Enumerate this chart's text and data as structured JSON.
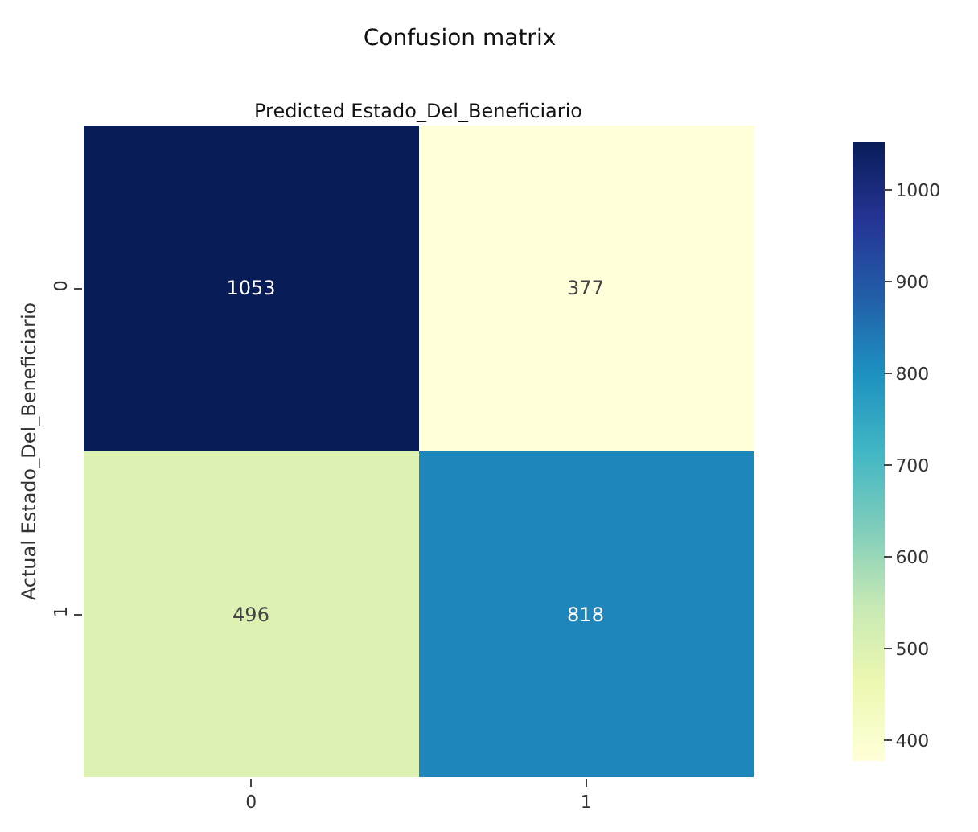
{
  "chart_data": {
    "type": "heatmap",
    "title": "Confusion matrix",
    "xlabel": "Predicted Estado_Del_Beneficiario",
    "ylabel": "Actual Estado_Del_Beneficiario",
    "categories": [
      "0",
      "1"
    ],
    "y_categories": [
      "0",
      "1"
    ],
    "cells": [
      [
        1053,
        377
      ],
      [
        496,
        818
      ]
    ],
    "clim": [
      377,
      1053
    ],
    "cticks": [
      400,
      500,
      600,
      700,
      800,
      900,
      1000
    ],
    "data_labels": true
  }
}
